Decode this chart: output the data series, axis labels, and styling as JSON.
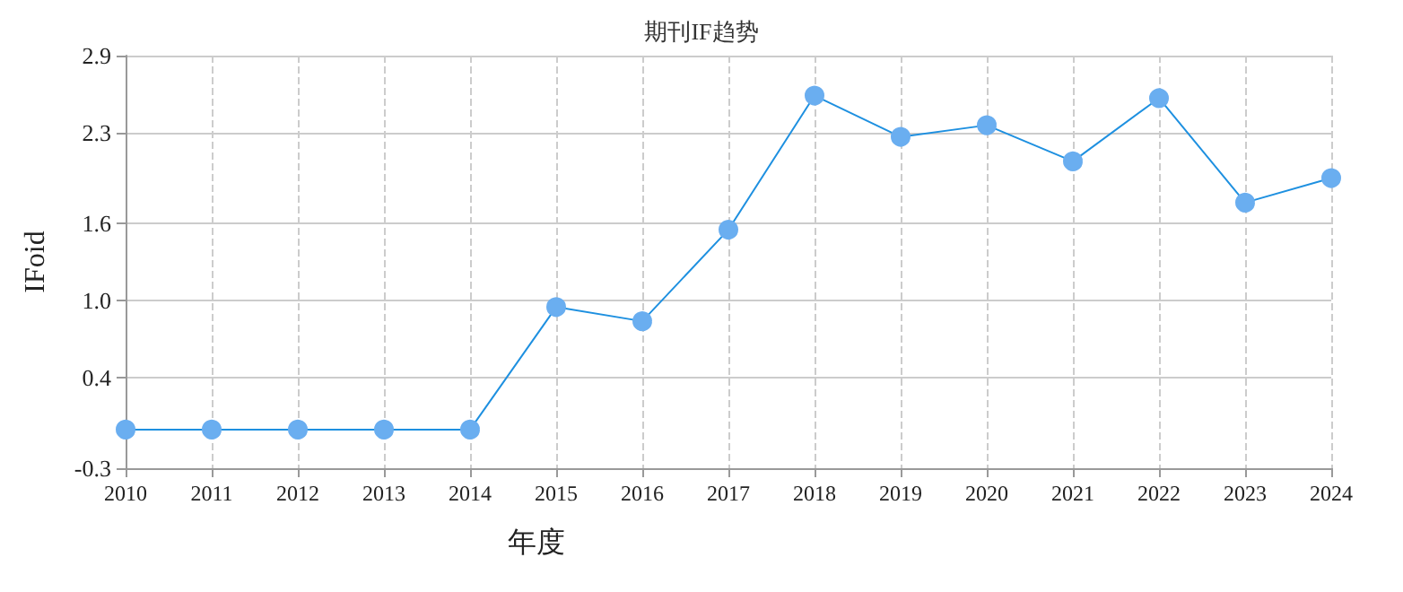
{
  "chart_data": {
    "type": "line",
    "title": "期刊IF趋势",
    "xlabel": "年度",
    "ylabel": "IFoid",
    "categories": [
      "2010",
      "2011",
      "2012",
      "2013",
      "2014",
      "2015",
      "2016",
      "2017",
      "2018",
      "2019",
      "2020",
      "2021",
      "2022",
      "2023",
      "2024"
    ],
    "series": [
      {
        "color": "#1e90e0",
        "values": [
          0,
          0,
          0,
          0,
          0,
          0.95,
          0.84,
          1.55,
          2.59,
          2.27,
          2.36,
          2.08,
          2.57,
          1.76,
          1.95
        ]
      }
    ],
    "ylim": [
      -0.3,
      2.9
    ],
    "yticks": [
      -0.3,
      0.4,
      {
        "value": 1.0,
        "label": "1.0"
      },
      1.6,
      2.3,
      2.9
    ],
    "grid": true,
    "marker": "circle",
    "line_style": "solid"
  }
}
